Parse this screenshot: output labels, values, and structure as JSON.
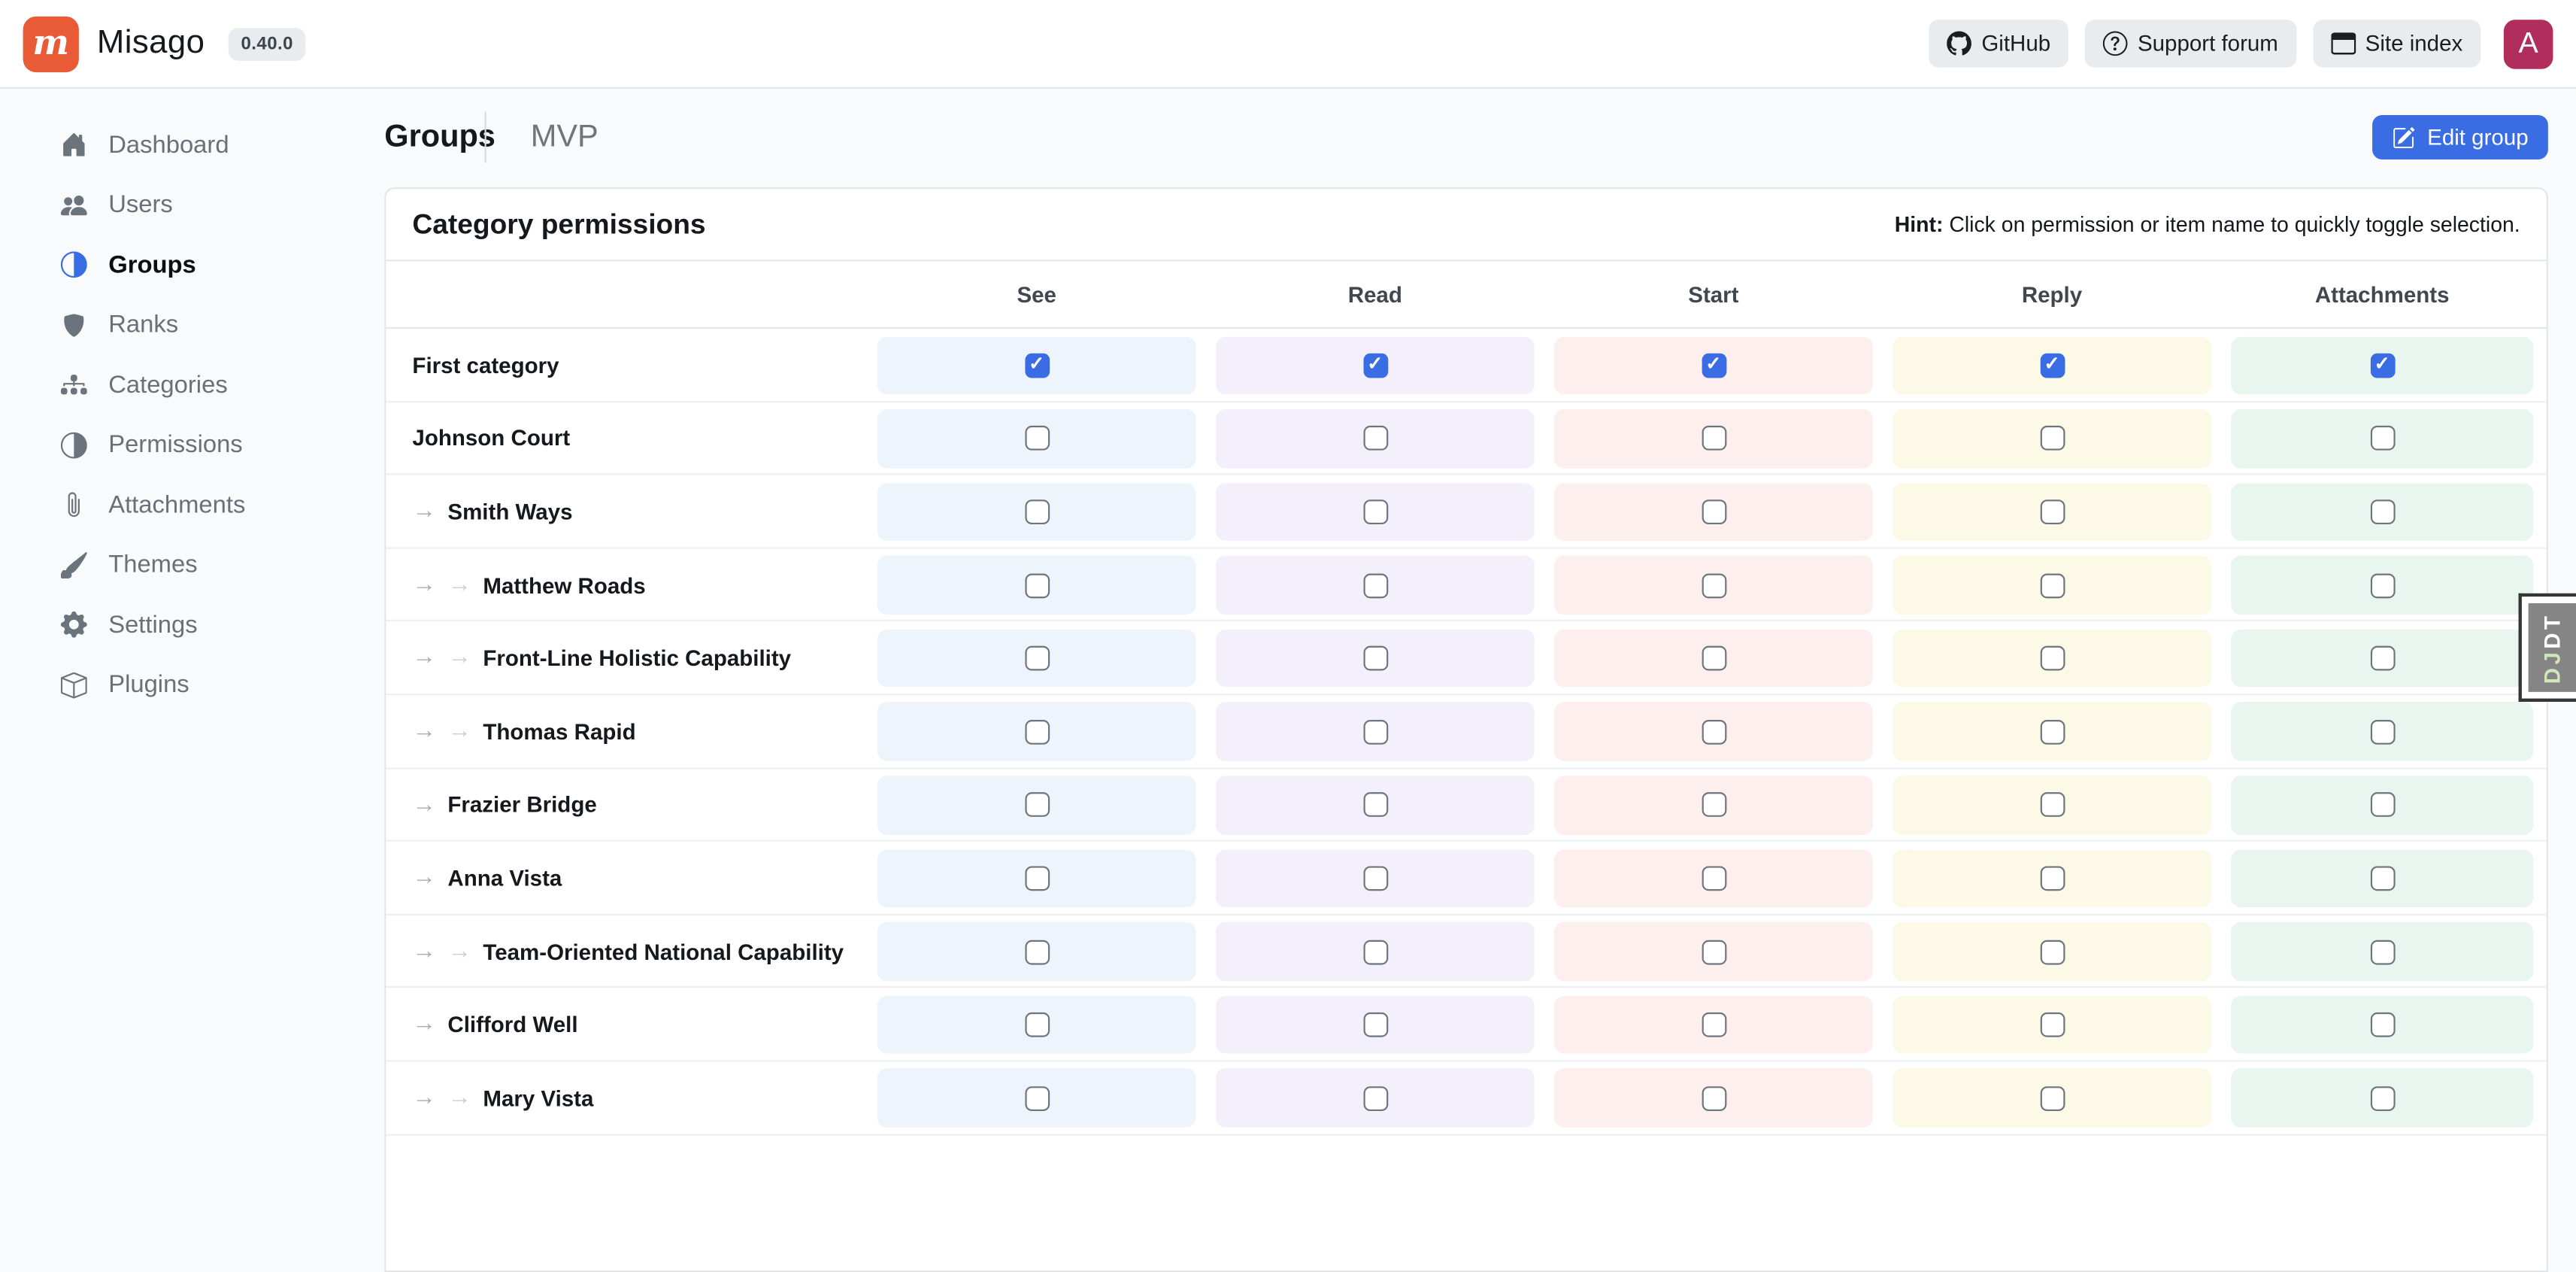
{
  "navbar": {
    "brand": "Misago",
    "version": "0.40.0",
    "links": [
      {
        "label": "GitHub",
        "icon": "github-icon"
      },
      {
        "label": "Support forum",
        "icon": "question-circle-icon"
      },
      {
        "label": "Site index",
        "icon": "window-icon"
      }
    ],
    "avatar_letter": "A"
  },
  "sidebar": {
    "items": [
      {
        "label": "Dashboard",
        "icon": "home-icon",
        "active": false
      },
      {
        "label": "Users",
        "icon": "users-icon",
        "active": false
      },
      {
        "label": "Groups",
        "icon": "circle-half-icon",
        "active": true
      },
      {
        "label": "Ranks",
        "icon": "shield-icon",
        "active": false
      },
      {
        "label": "Categories",
        "icon": "sitemap-icon",
        "active": false
      },
      {
        "label": "Permissions",
        "icon": "circle-half-icon",
        "active": false
      },
      {
        "label": "Attachments",
        "icon": "paperclip-icon",
        "active": false
      },
      {
        "label": "Themes",
        "icon": "brush-icon",
        "active": false
      },
      {
        "label": "Settings",
        "icon": "gear-icon",
        "active": false
      },
      {
        "label": "Plugins",
        "icon": "box-icon",
        "active": false
      }
    ]
  },
  "page": {
    "breadcrumb_root": "Groups",
    "breadcrumb_current": "MVP",
    "edit_button_label": "Edit group"
  },
  "card": {
    "title": "Category permissions",
    "hint_label": "Hint:",
    "hint_text": "Click on permission or item name to quickly toggle selection."
  },
  "table": {
    "columns": [
      {
        "label": "See",
        "color": "#edf4fb"
      },
      {
        "label": "Read",
        "color": "#f3f0fb"
      },
      {
        "label": "Start",
        "color": "#fdefed"
      },
      {
        "label": "Reply",
        "color": "#fcf9e6"
      },
      {
        "label": "Attachments",
        "color": "#e9f6ef"
      }
    ],
    "rows": [
      {
        "name": "First category",
        "depth": 0,
        "checked": [
          true,
          true,
          true,
          true,
          true
        ]
      },
      {
        "name": "Johnson Court",
        "depth": 0,
        "checked": [
          false,
          false,
          false,
          false,
          false
        ]
      },
      {
        "name": "Smith Ways",
        "depth": 1,
        "checked": [
          false,
          false,
          false,
          false,
          false
        ]
      },
      {
        "name": "Matthew Roads",
        "depth": 2,
        "checked": [
          false,
          false,
          false,
          false,
          false
        ]
      },
      {
        "name": "Front-Line Holistic Capability",
        "depth": 2,
        "checked": [
          false,
          false,
          false,
          false,
          false
        ]
      },
      {
        "name": "Thomas Rapid",
        "depth": 2,
        "checked": [
          false,
          false,
          false,
          false,
          false
        ]
      },
      {
        "name": "Frazier Bridge",
        "depth": 1,
        "checked": [
          false,
          false,
          false,
          false,
          false
        ]
      },
      {
        "name": "Anna Vista",
        "depth": 1,
        "checked": [
          false,
          false,
          false,
          false,
          false
        ]
      },
      {
        "name": "Team-Oriented National Capability",
        "depth": 2,
        "checked": [
          false,
          false,
          false,
          false,
          false
        ]
      },
      {
        "name": "Clifford Well",
        "depth": 1,
        "checked": [
          false,
          false,
          false,
          false,
          false
        ]
      },
      {
        "name": "Mary Vista",
        "depth": 2,
        "checked": [
          false,
          false,
          false,
          false,
          false
        ]
      }
    ],
    "checkmark": "✓",
    "indent_arrow": "→"
  },
  "djdt": {
    "label": "DJDT"
  },
  "colors": {
    "accent": "#3a6ce4",
    "brand_orange": "#e95b36",
    "avatar_bg": "#b12d5b"
  }
}
